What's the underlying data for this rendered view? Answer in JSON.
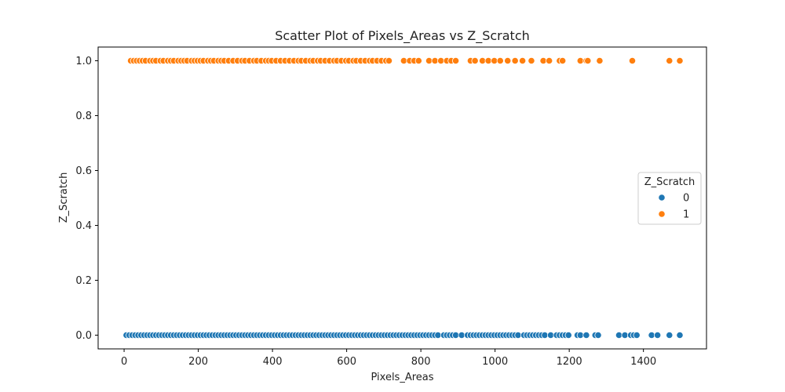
{
  "chart_data": {
    "type": "scatter",
    "title": "Scatter Plot of Pixels_Areas vs Z_Scratch",
    "xlabel": "Pixels_Areas",
    "ylabel": "Z_Scratch",
    "xlim": [
      -70,
      1570
    ],
    "ylim": [
      -0.05,
      1.05
    ],
    "xticks": [
      0,
      200,
      400,
      600,
      800,
      1000,
      1200,
      1400
    ],
    "yticks": [
      0.0,
      0.2,
      0.4,
      0.6,
      0.8,
      1.0
    ],
    "ytick_labels": [
      "0.0",
      "0.2",
      "0.4",
      "0.6",
      "0.8",
      "1.0"
    ],
    "grid": false,
    "legend": {
      "title": "Z_Scratch",
      "placement": "center-right",
      "entries": [
        "0",
        "1"
      ]
    },
    "series": [
      {
        "name": "0",
        "color": "#1f77b4",
        "y": 0,
        "x": [
          6,
          14,
          22,
          30,
          38,
          46,
          54,
          62,
          70,
          78,
          86,
          94,
          102,
          110,
          118,
          126,
          134,
          142,
          150,
          158,
          166,
          174,
          182,
          190,
          198,
          206,
          214,
          222,
          230,
          238,
          246,
          254,
          262,
          270,
          278,
          286,
          294,
          302,
          310,
          318,
          326,
          334,
          342,
          350,
          358,
          366,
          374,
          382,
          390,
          398,
          406,
          414,
          422,
          430,
          438,
          446,
          454,
          462,
          470,
          478,
          486,
          494,
          502,
          510,
          518,
          526,
          534,
          542,
          550,
          558,
          566,
          574,
          582,
          590,
          598,
          606,
          614,
          622,
          630,
          638,
          646,
          654,
          662,
          670,
          678,
          686,
          694,
          702,
          710,
          718,
          726,
          734,
          742,
          750,
          758,
          766,
          774,
          782,
          790,
          798,
          806,
          814,
          822,
          830,
          838,
          846,
          862,
          870,
          878,
          886,
          894,
          910,
          926,
          934,
          942,
          950,
          958,
          966,
          974,
          982,
          990,
          998,
          1006,
          1014,
          1022,
          1030,
          1038,
          1046,
          1054,
          1062,
          1078,
          1086,
          1094,
          1102,
          1110,
          1118,
          1126,
          1134,
          1150,
          1166,
          1174,
          1182,
          1190,
          1198,
          1222,
          1230,
          1246,
          1270,
          1278,
          1334,
          1350,
          1366,
          1374,
          1382,
          1422,
          1438,
          1470,
          1498
        ]
      },
      {
        "name": "1",
        "color": "#ff7f0e",
        "y": 1,
        "x": [
          18,
          26,
          34,
          42,
          50,
          58,
          70,
          78,
          86,
          98,
          106,
          118,
          126,
          134,
          146,
          154,
          162,
          170,
          182,
          190,
          198,
          206,
          214,
          226,
          234,
          242,
          254,
          262,
          270,
          282,
          294,
          306,
          318,
          326,
          338,
          350,
          358,
          370,
          382,
          390,
          398,
          410,
          422,
          434,
          446,
          458,
          470,
          478,
          490,
          502,
          510,
          522,
          530,
          542,
          554,
          566,
          574,
          586,
          598,
          606,
          618,
          626,
          638,
          650,
          662,
          670,
          682,
          694,
          706,
          714,
          754,
          770,
          782,
          794,
          822,
          838,
          854,
          870,
          882,
          894,
          934,
          946,
          966,
          982,
          998,
          1014,
          1034,
          1054,
          1074,
          1098,
          1130,
          1146,
          1174,
          1182,
          1230,
          1246,
          1250,
          1282,
          1370,
          1470,
          1498
        ]
      }
    ]
  }
}
